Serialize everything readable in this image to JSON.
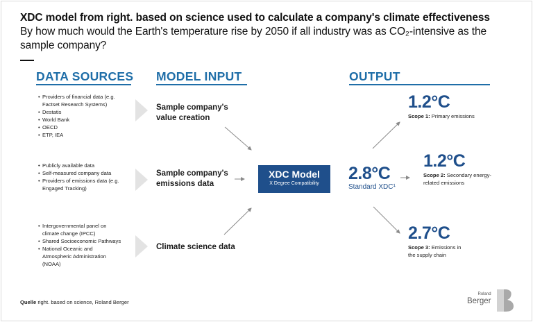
{
  "header": {
    "title": "XDC model from right. based on science used to calculate a company's climate effectiveness",
    "subtitle": "By how much would the Earth's temperature rise by 2050 if all industry was as CO₂-intensive as the sample company?"
  },
  "columns": {
    "data_sources": "DATA SOURCES",
    "model_input": "MODEL INPUT",
    "output": "OUTPUT"
  },
  "data_sources": {
    "group1": [
      "Providers of financial data (e.g. Factset Research Systems)",
      "Destatis",
      "World Bank",
      "OECD",
      "ETP, IEA"
    ],
    "group2": [
      "Publicly available data",
      "Self-measured company data",
      "Providers of emissions data (e.g. Engaged Tracking)"
    ],
    "group3": [
      "Intergovernmental panel on climate change (IPCC)",
      "Shared Socioeconomic Pathways",
      "National Oceanic and Atmospheric Administration (NOAA)"
    ]
  },
  "model_input": {
    "item1": "Sample company's value creation",
    "item2": "Sample company's emissions data",
    "item3": "Climate science data"
  },
  "model": {
    "name": "XDC Model",
    "sub": "X Degree Compatibility"
  },
  "result": {
    "value": "2.8°C",
    "label": "Standard XDC¹"
  },
  "outputs": {
    "scope1": {
      "value": "1.2°C",
      "bold": "Scope 1:",
      "text": " Primary emissions"
    },
    "scope2": {
      "value": "1.2°C",
      "bold": "Scope 2:",
      "text": " Secondary energy-related emissions"
    },
    "scope3": {
      "value": "2.7°C",
      "bold": "Scope 3:",
      "text": " Emissions in the supply chain"
    }
  },
  "footer": {
    "source_label": "Quelle",
    "source_text": " right. based on science, Roland Berger"
  },
  "logo": {
    "roland": "Roland",
    "berger": "Berger"
  },
  "colors": {
    "accent": "#1f6ea8",
    "model_box": "#1f4f8b",
    "chevron": "#e3e3e3"
  }
}
